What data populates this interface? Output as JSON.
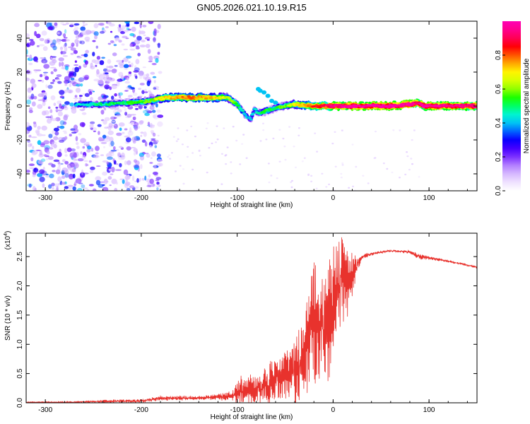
{
  "figure": {
    "title": "GN05.2026.021.10.19.R15"
  },
  "chart_data": [
    {
      "type": "heatmap",
      "name": "spectrogram",
      "xlabel": "Height of straight line (km)",
      "ylabel": "Frequency (Hz)",
      "xlim": [
        -320,
        150
      ],
      "ylim": [
        -50,
        50
      ],
      "xticks": [
        -300,
        -200,
        -100,
        0,
        100
      ],
      "yticks": [
        -40,
        -20,
        0,
        20,
        40
      ],
      "colorbar": {
        "label": "Normalized spectral amplitude",
        "range": [
          0,
          1
        ],
        "ticks": [
          0.0,
          0.2,
          0.4,
          0.6,
          0.8
        ],
        "tick_labels": [
          "0.0",
          "0.2",
          "0.4",
          "0.6",
          "0.8"
        ],
        "colors": [
          "#ffffff",
          "#e6d2ff",
          "#b07bff",
          "#5a00ff",
          "#0000ff",
          "#00b4ff",
          "#00ffc8",
          "#00ff00",
          "#b4ff00",
          "#ffff00",
          "#ff8c00",
          "#ff0000",
          "#ff0078",
          "#ff00b4"
        ]
      },
      "ridge": {
        "description": "dominant frequency trace",
        "x": [
          -268,
          -240,
          -210,
          -190,
          -175,
          -150,
          -125,
          -110,
          -100,
          -92,
          -86,
          -82,
          -78,
          -70,
          -60,
          -50,
          -40,
          -20,
          0,
          20,
          60,
          80,
          88,
          95,
          110,
          150
        ],
        "y": [
          1,
          1,
          2,
          3,
          5,
          5,
          5,
          5,
          1,
          -5,
          -8,
          -2,
          -4,
          -3,
          -1,
          0,
          1,
          0,
          0,
          0,
          0,
          1,
          2,
          0,
          0,
          0
        ],
        "amplitude": [
          0.35,
          0.4,
          0.45,
          0.5,
          0.65,
          0.7,
          0.65,
          0.55,
          0.45,
          0.35,
          0.3,
          0.35,
          0.4,
          0.45,
          0.45,
          0.5,
          0.6,
          0.75,
          0.85,
          0.9,
          0.92,
          0.9,
          0.85,
          0.9,
          0.9,
          0.85
        ]
      },
      "noise_region": {
        "x_range": [
          -320,
          -190
        ],
        "amplitude": 0.25
      }
    },
    {
      "type": "line",
      "name": "snr",
      "xlabel": "Height of straight line (km)",
      "ylabel": "SNR (10 * v/v)",
      "y_multiplier_label": "(x10",
      "y_multiplier_exp": "4",
      "y_multiplier_close": ")",
      "xlim": [
        -320,
        150
      ],
      "ylim": [
        0,
        2.9
      ],
      "xticks": [
        -300,
        -200,
        -100,
        0,
        100
      ],
      "yticks": [
        0.0,
        0.5,
        1.0,
        1.5,
        2.0,
        2.5
      ],
      "ytick_labels": [
        "0.0",
        "0.5",
        "1.0",
        "1.5",
        "2.0",
        "2.5"
      ],
      "color": "#e8322d",
      "envelope": {
        "x": [
          -320,
          -280,
          -250,
          -220,
          -200,
          -180,
          -150,
          -120,
          -105,
          -100,
          -90,
          -80,
          -70,
          -60,
          -50,
          -40,
          -30,
          -25,
          -20,
          -15,
          -10,
          -5,
          0,
          5,
          10,
          15,
          20,
          25,
          30,
          40,
          60,
          80,
          90,
          100,
          120,
          150
        ],
        "base": [
          0.01,
          0.01,
          0.02,
          0.03,
          0.03,
          0.08,
          0.08,
          0.1,
          0.12,
          0.15,
          0.2,
          0.25,
          0.3,
          0.4,
          0.45,
          0.55,
          0.8,
          1.2,
          1.5,
          1.1,
          1.4,
          1.2,
          1.7,
          2.0,
          2.1,
          2.0,
          2.2,
          2.35,
          2.5,
          2.55,
          2.6,
          2.58,
          2.5,
          2.48,
          2.42,
          2.32
        ],
        "spread": [
          0.01,
          0.015,
          0.02,
          0.03,
          0.03,
          0.04,
          0.04,
          0.05,
          0.1,
          0.3,
          0.3,
          0.3,
          0.35,
          0.45,
          0.5,
          0.6,
          0.9,
          1.1,
          1.3,
          1.3,
          1.2,
          1.1,
          1.0,
          0.8,
          0.8,
          0.6,
          0.4,
          0.15,
          0.05,
          0.03,
          0.02,
          0.03,
          0.05,
          0.03,
          0.02,
          0.02
        ]
      }
    }
  ]
}
